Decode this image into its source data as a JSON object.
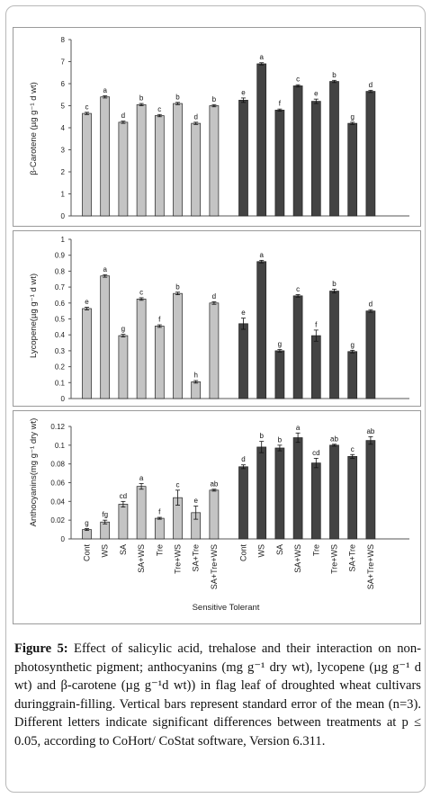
{
  "colors": {
    "sensitive": "#c4c4c4",
    "tolerant": "#434343",
    "axis": "#555555",
    "border": "#9a9a9a"
  },
  "x_category_labels": [
    "Cont",
    "WS",
    "SA",
    "SA+WS",
    "Tre",
    "Tre+WS",
    "SA+Tre",
    "SA+Tre+WS"
  ],
  "x_axis_group_label": "Sensitive Tolerant",
  "chart_data": [
    {
      "type": "bar",
      "ylabel": "β-Carotene (µg g⁻¹ d wt)",
      "ylim": [
        0,
        8
      ],
      "yticks": [
        0,
        1,
        2,
        3,
        4,
        5,
        6,
        7,
        8
      ],
      "categories": [
        "Cont",
        "WS",
        "SA",
        "SA+WS",
        "Tre",
        "Tre+WS",
        "SA+Tre",
        "SA+Tre+WS"
      ],
      "series": [
        {
          "name": "Sensitive",
          "values": [
            4.65,
            5.4,
            4.25,
            5.05,
            4.55,
            5.1,
            4.2,
            5.0
          ],
          "errors": [
            0.05,
            0.05,
            0.05,
            0.05,
            0.05,
            0.05,
            0.05,
            0.05
          ],
          "letters": [
            "c",
            "a",
            "d",
            "b",
            "c",
            "b",
            "d",
            "b"
          ]
        },
        {
          "name": "Tolerant",
          "values": [
            5.25,
            6.9,
            4.8,
            5.9,
            5.2,
            6.1,
            4.2,
            5.65
          ],
          "errors": [
            0.1,
            0.05,
            0.05,
            0.05,
            0.1,
            0.05,
            0.05,
            0.05
          ],
          "letters": [
            "e",
            "a",
            "f",
            "c",
            "e",
            "b",
            "g",
            "d"
          ]
        }
      ]
    },
    {
      "type": "bar",
      "ylabel": "Lycopene(µg g⁻¹ d wt)",
      "ylim": [
        0,
        1
      ],
      "yticks": [
        0,
        0.1,
        0.2,
        0.3,
        0.4,
        0.5,
        0.6,
        0.7,
        0.8,
        0.9,
        1
      ],
      "categories": [
        "Cont",
        "WS",
        "SA",
        "SA+WS",
        "Tre",
        "Tre+WS",
        "SA+Tre",
        "SA+Tre+WS"
      ],
      "series": [
        {
          "name": "Sensitive",
          "values": [
            0.565,
            0.77,
            0.395,
            0.625,
            0.455,
            0.66,
            0.105,
            0.6
          ],
          "errors": [
            0.008,
            0.008,
            0.008,
            0.008,
            0.008,
            0.008,
            0.008,
            0.008
          ],
          "letters": [
            "e",
            "a",
            "g",
            "c",
            "f",
            "b",
            "h",
            "d"
          ]
        },
        {
          "name": "Tolerant",
          "values": [
            0.47,
            0.86,
            0.3,
            0.645,
            0.395,
            0.675,
            0.295,
            0.55
          ],
          "errors": [
            0.035,
            0.008,
            0.008,
            0.008,
            0.035,
            0.012,
            0.008,
            0.008
          ],
          "letters": [
            "e",
            "a",
            "g",
            "c",
            "f",
            "b",
            "g",
            "d"
          ]
        }
      ]
    },
    {
      "type": "bar",
      "ylabel": "Anthocyanins(mg g⁻¹ dry wt)",
      "ylim": [
        0,
        0.12
      ],
      "yticks": [
        0,
        0.02,
        0.04,
        0.06,
        0.08,
        0.1,
        0.12
      ],
      "categories": [
        "Cont",
        "WS",
        "SA",
        "SA+WS",
        "Tre",
        "Tre+WS",
        "SA+Tre",
        "SA+Tre+WS"
      ],
      "series": [
        {
          "name": "Sensitive",
          "values": [
            0.01,
            0.018,
            0.037,
            0.056,
            0.022,
            0.044,
            0.028,
            0.052
          ],
          "errors": [
            0.001,
            0.002,
            0.003,
            0.003,
            0.001,
            0.008,
            0.007,
            0.001
          ],
          "letters": [
            "g",
            "fg",
            "cd",
            "a",
            "f",
            "c",
            "e",
            "ab"
          ]
        },
        {
          "name": "Tolerant",
          "values": [
            0.077,
            0.098,
            0.097,
            0.108,
            0.081,
            0.1,
            0.088,
            0.105
          ],
          "errors": [
            0.002,
            0.006,
            0.003,
            0.005,
            0.005,
            0.001,
            0.002,
            0.004
          ],
          "letters": [
            "d",
            "b",
            "b",
            "a",
            "cd",
            "ab",
            "c",
            "ab"
          ]
        }
      ]
    }
  ],
  "caption": {
    "label": "Figure 5:",
    "text": "Effect of salicylic acid, trehalose and their interaction on non-photosynthetic pigment; anthocyanins (mg g⁻¹ dry wt), lycopene (µg g⁻¹ d wt) and β-carotene (µg g⁻¹d wt)) in flag leaf of droughted wheat cultivars duringgrain-filling. Vertical bars represent standard error of the mean (n=3). Different letters indicate significant differences between treatments at p ≤ 0.05, according to CoHort/ CoStat software, Version 6.311."
  }
}
